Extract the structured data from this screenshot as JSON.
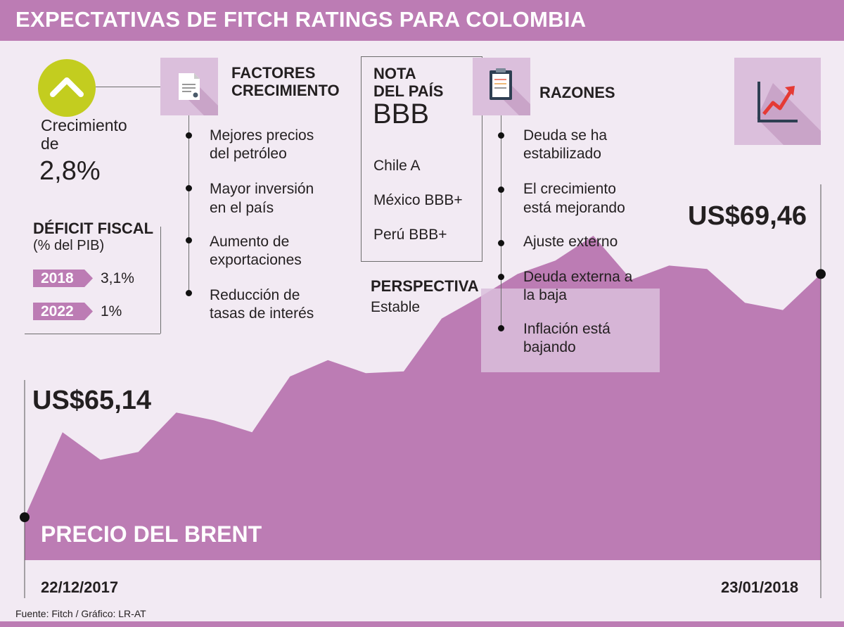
{
  "header": {
    "title": "EXPECTATIVAS DE FITCH RATINGS PARA COLOMBIA"
  },
  "crecimiento": {
    "label_line1": "Crecimiento",
    "label_line2": "de",
    "value": "2,8%",
    "icon": "chevron-up-icon"
  },
  "deficit": {
    "title": "DÉFICIT FISCAL",
    "subtitle": "(% del PIB)",
    "rows": [
      {
        "year": "2018",
        "value": "3,1%"
      },
      {
        "year": "2022",
        "value": "1%"
      }
    ]
  },
  "factores": {
    "title_line1": "FACTORES",
    "title_line2": "CRECIMIENTO",
    "icon": "document-icon",
    "items": [
      {
        "line1": "Mejores precios",
        "line2": "del petróleo"
      },
      {
        "line1": "Mayor inversión",
        "line2": "en el país"
      },
      {
        "line1": "Aumento de",
        "line2": "exportaciones"
      },
      {
        "line1": "Reducción de",
        "line2": "tasas de interés"
      }
    ]
  },
  "nota": {
    "title_line1": "NOTA",
    "title_line2": "DEL PAÍS",
    "value": "BBB",
    "comparisons": [
      "Chile A",
      "México BBB+",
      "Perú BBB+"
    ]
  },
  "perspectiva": {
    "title": "PERSPECTIVA",
    "value": "Estable"
  },
  "razones": {
    "title": "RAZONES",
    "icon": "clipboard-icon",
    "items": [
      {
        "line1": "Deuda se ha",
        "line2": "estabilizado"
      },
      {
        "line1": "El crecimiento",
        "line2": "está mejorando"
      },
      {
        "line1": "Ajuste externo",
        "line2": ""
      },
      {
        "line1": "Deuda externa a",
        "line2": "la baja"
      },
      {
        "line1": "Inflación está",
        "line2": "bajando"
      }
    ]
  },
  "trend_icon": "trend-chart-icon",
  "chart_data": {
    "type": "area",
    "title": "PRECIO DEL BRENT",
    "x_start_label": "22/12/2017",
    "x_end_label": "23/01/2018",
    "start_label": "US$65,14",
    "end_label": "US$69,46",
    "values": [
      65.14,
      66.65,
      66.16,
      66.3,
      67.0,
      66.86,
      66.65,
      67.64,
      67.93,
      67.7,
      67.73,
      68.67,
      69.05,
      69.46,
      69.7,
      70.14,
      69.36,
      69.61,
      69.55,
      68.95,
      68.82,
      69.46
    ],
    "color": "#bc7cb4"
  },
  "footer": {
    "source": "Fuente:  Fitch / Gráfico: LR-AT"
  }
}
